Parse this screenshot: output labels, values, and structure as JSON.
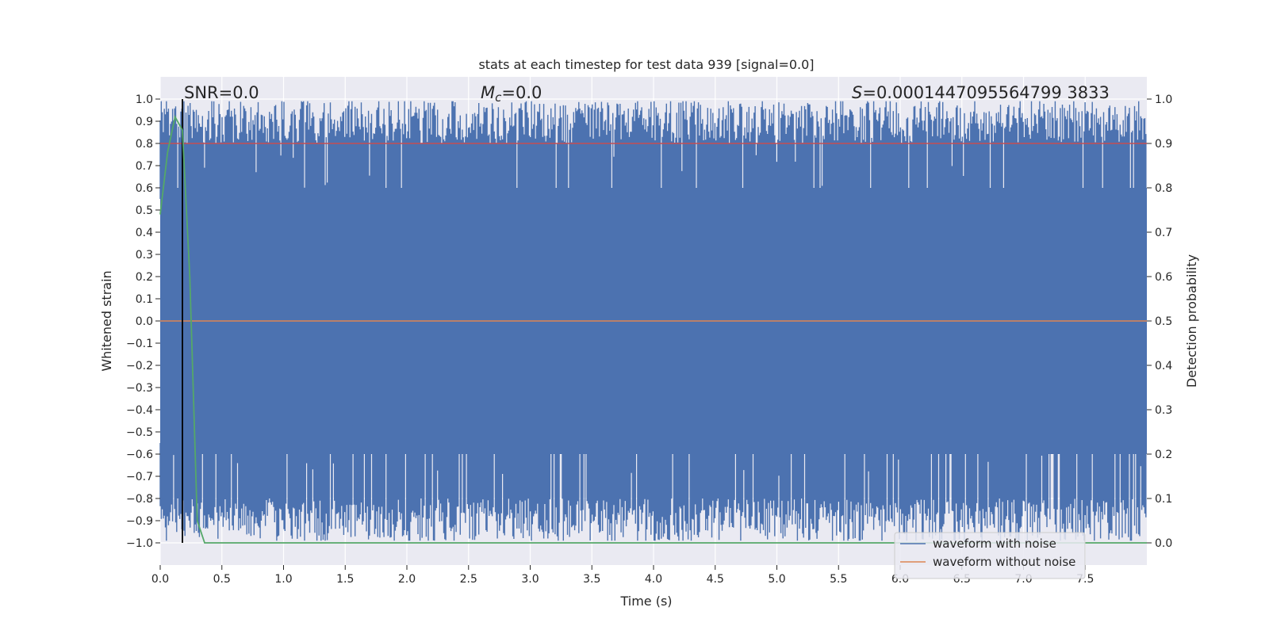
{
  "chart_data": {
    "type": "line",
    "title": "stats at each timestep for test data 939 [signal=0.0]",
    "xlabel": "Time (s)",
    "ylabel": "Whitened strain",
    "ylabel_right": "Detection probability",
    "xlim": [
      0.0,
      8.0
    ],
    "ylim": [
      -1.1,
      1.1
    ],
    "ylim_right": [
      -0.05,
      1.05
    ],
    "x_ticks": [
      "0.0",
      "0.5",
      "1.0",
      "1.5",
      "2.0",
      "2.5",
      "3.0",
      "3.5",
      "4.0",
      "4.5",
      "5.0",
      "5.5",
      "6.0",
      "6.5",
      "7.0",
      "7.5"
    ],
    "y_ticks_left": [
      "1.0",
      "0.9",
      "0.8",
      "0.7",
      "0.6",
      "0.5",
      "0.4",
      "0.3",
      "0.2",
      "0.1",
      "0.0",
      "−0.1",
      "−0.2",
      "−0.3",
      "−0.4",
      "−0.5",
      "−0.6",
      "−0.7",
      "−0.8",
      "−0.9",
      "−1.0"
    ],
    "y_ticks_right": [
      "1.0",
      "0.9",
      "0.8",
      "0.7",
      "0.6",
      "0.5",
      "0.4",
      "0.3",
      "0.2",
      "0.1",
      "0.0"
    ],
    "grid": true,
    "legend_position": "bottom-right",
    "annotations": {
      "snr": "SNR=0.0",
      "mc_symbol": "M",
      "mc_sub": "c",
      "mc_value": "=0.0",
      "s_symbol": "S",
      "s_value": "=0.0001447095564799 3833"
    },
    "series": [
      {
        "name": "waveform with noise",
        "color": "#4c72b0",
        "style": "dense noise filling roughly -1.0 to 1.0 over the full time range"
      },
      {
        "name": "waveform without noise",
        "color": "#dd8452",
        "y": 0.0
      },
      {
        "color": "#55a868",
        "axis": "right",
        "x": [
          0.0,
          0.06,
          0.12,
          0.18,
          0.24,
          0.3,
          0.36,
          0.42,
          8.0
        ],
        "y": [
          0.74,
          0.88,
          0.96,
          0.93,
          0.6,
          0.05,
          0.0,
          0.0,
          0.0
        ]
      }
    ],
    "threshold_line": {
      "color": "#c44e52",
      "y_right": 0.9
    },
    "marker_line": {
      "color": "#000000",
      "x": 0.18
    }
  }
}
